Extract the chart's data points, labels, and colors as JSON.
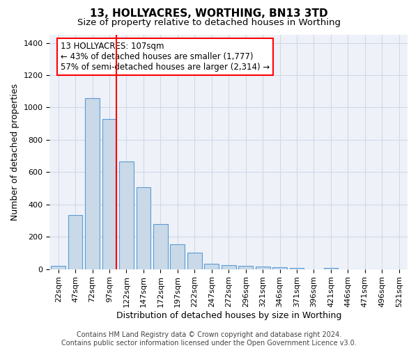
{
  "title": "13, HOLLYACRES, WORTHING, BN13 3TD",
  "subtitle": "Size of property relative to detached houses in Worthing",
  "xlabel": "Distribution of detached houses by size in Worthing",
  "ylabel": "Number of detached properties",
  "categories": [
    "22sqm",
    "47sqm",
    "72sqm",
    "97sqm",
    "122sqm",
    "147sqm",
    "172sqm",
    "197sqm",
    "222sqm",
    "247sqm",
    "272sqm",
    "296sqm",
    "321sqm",
    "346sqm",
    "371sqm",
    "396sqm",
    "421sqm",
    "446sqm",
    "471sqm",
    "496sqm",
    "521sqm"
  ],
  "values": [
    20,
    335,
    1060,
    930,
    665,
    505,
    280,
    155,
    100,
    32,
    22,
    18,
    15,
    12,
    6,
    0,
    5,
    0,
    0,
    0,
    0
  ],
  "bar_color": "#c9d9e8",
  "bar_edge_color": "#5b9bd5",
  "grid_color": "#d0d8e8",
  "background_color": "#eef2f8",
  "annotation_line1": "13 HOLLYACRES: 107sqm",
  "annotation_line2": "← 43% of detached houses are smaller (1,777)",
  "annotation_line3": "57% of semi-detached houses are larger (2,314) →",
  "red_line_x": 3.4,
  "ylim": [
    0,
    1450
  ],
  "yticks": [
    0,
    200,
    400,
    600,
    800,
    1000,
    1200,
    1400
  ],
  "footer_text": "Contains HM Land Registry data © Crown copyright and database right 2024.\nContains public sector information licensed under the Open Government Licence v3.0.",
  "title_fontsize": 11,
  "subtitle_fontsize": 9.5,
  "axis_label_fontsize": 9,
  "tick_fontsize": 8,
  "annotation_fontsize": 8.5,
  "footer_fontsize": 7
}
